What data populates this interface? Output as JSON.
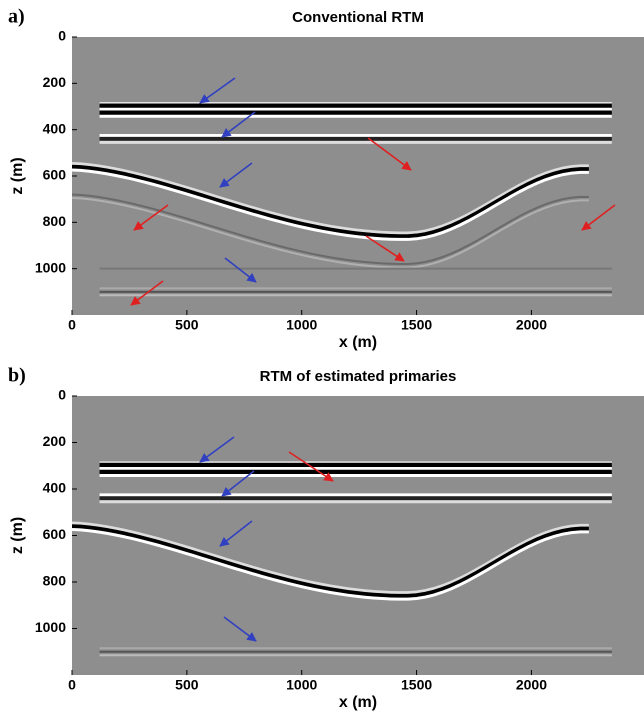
{
  "chart_data": [
    {
      "type": "image",
      "panel_label": "a)",
      "title": "Conventional RTM",
      "xlabel": "x (m)",
      "ylabel": "z (m)",
      "xlim": [
        0,
        2490
      ],
      "ylim": [
        1200,
        0
      ],
      "xticks": [
        0,
        500,
        1000,
        1500,
        2000
      ],
      "yticks": [
        0,
        200,
        400,
        600,
        800,
        1000
      ],
      "multiples": true
    },
    {
      "type": "image",
      "panel_label": "b)",
      "title": "RTM of estimated primaries",
      "xlabel": "x (m)",
      "ylabel": "z (m)",
      "xlim": [
        0,
        2490
      ],
      "ylim": [
        1200,
        0
      ],
      "xticks": [
        0,
        500,
        1000,
        1500,
        2000
      ],
      "yticks": [
        0,
        200,
        400,
        600,
        800,
        1000
      ],
      "multiples": false
    }
  ]
}
